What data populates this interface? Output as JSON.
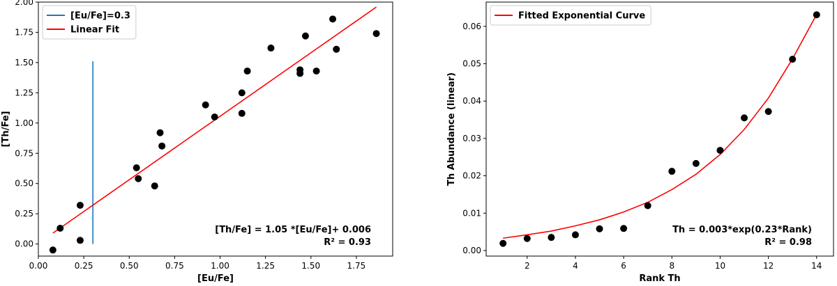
{
  "chart_data": [
    {
      "type": "scatter",
      "xlabel": "[Eu/Fe]",
      "ylabel": "[Th/Fe]",
      "xlim": [
        0.0,
        1.95
      ],
      "ylim": [
        -0.1,
        2.0
      ],
      "xticks": [
        0.0,
        0.25,
        0.5,
        0.75,
        1.0,
        1.25,
        1.5,
        1.75
      ],
      "xtick_labels": [
        "0.00",
        "0.25",
        "0.50",
        "0.75",
        "1.00",
        "1.25",
        "1.50",
        "1.75"
      ],
      "yticks": [
        0.0,
        0.25,
        0.5,
        0.75,
        1.0,
        1.25,
        1.5,
        1.75,
        2.0
      ],
      "ytick_labels": [
        "0.00",
        "0.25",
        "0.50",
        "0.75",
        "1.00",
        "1.25",
        "1.50",
        "1.75",
        "2.00"
      ],
      "legend": [
        "[Eu/Fe]=0.3",
        "Linear Fit"
      ],
      "legend_position": "top-left",
      "grid": false,
      "points": [
        {
          "x": 0.08,
          "y": -0.05
        },
        {
          "x": 0.12,
          "y": 0.13
        },
        {
          "x": 0.23,
          "y": 0.32
        },
        {
          "x": 0.23,
          "y": 0.03
        },
        {
          "x": 0.54,
          "y": 0.63
        },
        {
          "x": 0.55,
          "y": 0.54
        },
        {
          "x": 0.64,
          "y": 0.48
        },
        {
          "x": 0.67,
          "y": 0.92
        },
        {
          "x": 0.68,
          "y": 0.81
        },
        {
          "x": 0.92,
          "y": 1.15
        },
        {
          "x": 0.97,
          "y": 1.05
        },
        {
          "x": 1.12,
          "y": 1.25
        },
        {
          "x": 1.12,
          "y": 1.08
        },
        {
          "x": 1.15,
          "y": 1.43
        },
        {
          "x": 1.28,
          "y": 1.62
        },
        {
          "x": 1.44,
          "y": 1.44
        },
        {
          "x": 1.44,
          "y": 1.41
        },
        {
          "x": 1.47,
          "y": 1.72
        },
        {
          "x": 1.53,
          "y": 1.43
        },
        {
          "x": 1.62,
          "y": 1.86
        },
        {
          "x": 1.64,
          "y": 1.61
        },
        {
          "x": 1.86,
          "y": 1.74
        }
      ],
      "point_color": "#000000",
      "vline": {
        "x": 0.3,
        "y_from": 0.0,
        "y_to": 1.51,
        "color": "#1f77b4"
      },
      "fit_line": {
        "slope": 1.05,
        "intercept": 0.006,
        "x_from": 0.08,
        "x_to": 1.86,
        "color": "#ff0000"
      },
      "annotation_lines": [
        "[Th/Fe] = 1.05 *[Eu/Fe]+ 0.006",
        "R² = 0.93"
      ]
    },
    {
      "type": "scatter",
      "xlabel": "Rank Th",
      "ylabel": "Th Abundance (linear)",
      "xlim": [
        0.3,
        14.7
      ],
      "ylim": [
        -0.0015,
        0.0665
      ],
      "xticks": [
        2,
        4,
        6,
        8,
        10,
        12,
        14
      ],
      "xtick_labels": [
        "2",
        "4",
        "6",
        "8",
        "10",
        "12",
        "14"
      ],
      "yticks": [
        0.0,
        0.01,
        0.02,
        0.03,
        0.04,
        0.05,
        0.06
      ],
      "ytick_labels": [
        "0.00",
        "0.01",
        "0.02",
        "0.03",
        "0.04",
        "0.05",
        "0.06"
      ],
      "legend": [
        "Fitted Exponential Curve"
      ],
      "legend_position": "top-left",
      "grid": false,
      "points": [
        {
          "x": 1,
          "y": 0.0019
        },
        {
          "x": 2,
          "y": 0.0032
        },
        {
          "x": 3,
          "y": 0.0035
        },
        {
          "x": 4,
          "y": 0.0042
        },
        {
          "x": 5,
          "y": 0.0058
        },
        {
          "x": 6,
          "y": 0.0059
        },
        {
          "x": 7,
          "y": 0.012
        },
        {
          "x": 8,
          "y": 0.0212
        },
        {
          "x": 9,
          "y": 0.0233
        },
        {
          "x": 10,
          "y": 0.0268
        },
        {
          "x": 11,
          "y": 0.0355
        },
        {
          "x": 12,
          "y": 0.0372
        },
        {
          "x": 13,
          "y": 0.0512
        },
        {
          "x": 14,
          "y": 0.0631
        }
      ],
      "point_color": "#000000",
      "curve": {
        "x": [
          1,
          2,
          3,
          4,
          5,
          6,
          7,
          8,
          9,
          10,
          11,
          12,
          13,
          14
        ],
        "y": [
          0.0033,
          0.0042,
          0.0052,
          0.0066,
          0.0082,
          0.0103,
          0.0129,
          0.0163,
          0.0204,
          0.0257,
          0.0324,
          0.0408,
          0.0513,
          0.0632
        ],
        "color": "#ff0000"
      },
      "annotation_lines": [
        "Th = 0.003*exp(0.23*Rank)",
        "R² = 0.98"
      ]
    }
  ]
}
